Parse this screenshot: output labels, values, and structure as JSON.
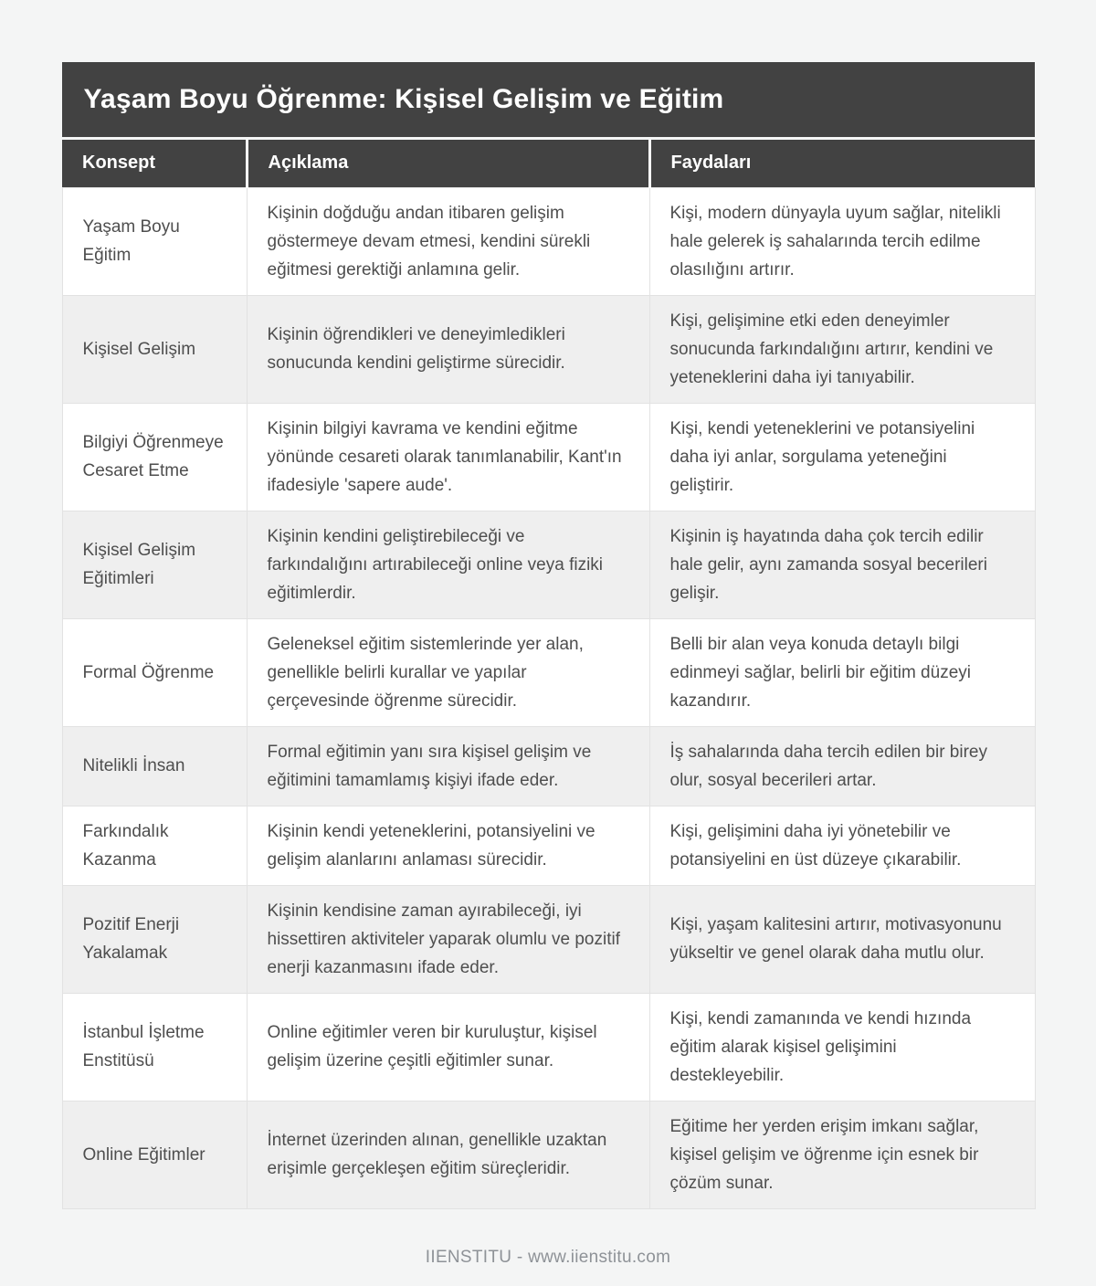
{
  "page": {
    "title": "Yaşam Boyu Öğrenme: Kişisel Gelişim ve Eğitim",
    "footer": "IIENSTITU - www.iienstitu.com"
  },
  "colors": {
    "header_background": "#424242",
    "header_text": "#ffffff",
    "row_stripe": "#efefef",
    "body_text": "#4e4e4e",
    "page_background": "#f4f5f5",
    "footer_text": "#8e9297"
  },
  "table": {
    "columns": [
      "Konsept",
      "Açıklama",
      "Faydaları"
    ],
    "rows": [
      {
        "konsept": "Yaşam Boyu Eğitim",
        "aciklama": "Kişinin doğduğu andan itibaren gelişim göstermeye devam etmesi, kendini sürekli eğitmesi gerektiği anlamına gelir.",
        "faydalari": "Kişi, modern dünyayla uyum sağlar, nitelikli hale gelerek iş sahalarında tercih edilme olasılığını artırır."
      },
      {
        "konsept": "Kişisel Gelişim",
        "aciklama": "Kişinin öğrendikleri ve deneyimledikleri sonucunda kendini geliştirme sürecidir.",
        "faydalari": "Kişi, gelişimine etki eden deneyimler sonucunda farkındalığını artırır, kendini ve yeteneklerini daha iyi tanıyabilir."
      },
      {
        "konsept": "Bilgiyi Öğrenmeye Cesaret Etme",
        "aciklama": "Kişinin bilgiyi kavrama ve kendini eğitme yönünde cesareti olarak tanımlanabilir, Kant'ın ifadesiyle 'sapere aude'.",
        "faydalari": "Kişi, kendi yeteneklerini ve potansiyelini daha iyi anlar, sorgulama yeteneğini geliştirir."
      },
      {
        "konsept": "Kişisel Gelişim Eğitimleri",
        "aciklama": "Kişinin kendini geliştirebileceği ve farkındalığını artırabileceği online veya fiziki eğitimlerdir.",
        "faydalari": "Kişinin iş hayatında daha çok tercih edilir hale gelir, aynı zamanda sosyal becerileri gelişir."
      },
      {
        "konsept": "Formal Öğrenme",
        "aciklama": "Geleneksel eğitim sistemlerinde yer alan, genellikle belirli kurallar ve yapılar çerçevesinde öğrenme sürecidir.",
        "faydalari": "Belli bir alan veya konuda detaylı bilgi edinmeyi sağlar, belirli bir eğitim düzeyi kazandırır."
      },
      {
        "konsept": "Nitelikli İnsan",
        "aciklama": "Formal eğitimin yanı sıra kişisel gelişim ve eğitimini tamamlamış kişiyi ifade eder.",
        "faydalari": "İş sahalarında daha tercih edilen bir birey olur, sosyal becerileri artar."
      },
      {
        "konsept": "Farkındalık Kazanma",
        "aciklama": "Kişinin kendi yeteneklerini, potansiyelini ve gelişim alanlarını anlaması sürecidir.",
        "faydalari": "Kişi, gelişimini daha iyi yönetebilir ve potansiyelini en üst düzeye çıkarabilir."
      },
      {
        "konsept": "Pozitif Enerji Yakalamak",
        "aciklama": "Kişinin kendisine zaman ayırabileceği, iyi hissettiren aktiviteler yaparak olumlu ve pozitif enerji kazanmasını ifade eder.",
        "faydalari": "Kişi, yaşam kalitesini artırır, motivasyonunu yükseltir ve genel olarak daha mutlu olur."
      },
      {
        "konsept": "İstanbul İşletme Enstitüsü",
        "aciklama": "Online eğitimler veren bir kuruluştur, kişisel gelişim üzerine çeşitli eğitimler sunar.",
        "faydalari": "Kişi, kendi zamanında ve kendi hızında eğitim alarak kişisel gelişimini destekleyebilir."
      },
      {
        "konsept": "Online Eğitimler",
        "aciklama": "İnternet üzerinden alınan, genellikle uzaktan erişimle gerçekleşen eğitim süreçleridir.",
        "faydalari": "Eğitime her yerden erişim imkanı sağlar, kişisel gelişim ve öğrenme için esnek bir çözüm sunar."
      }
    ]
  }
}
